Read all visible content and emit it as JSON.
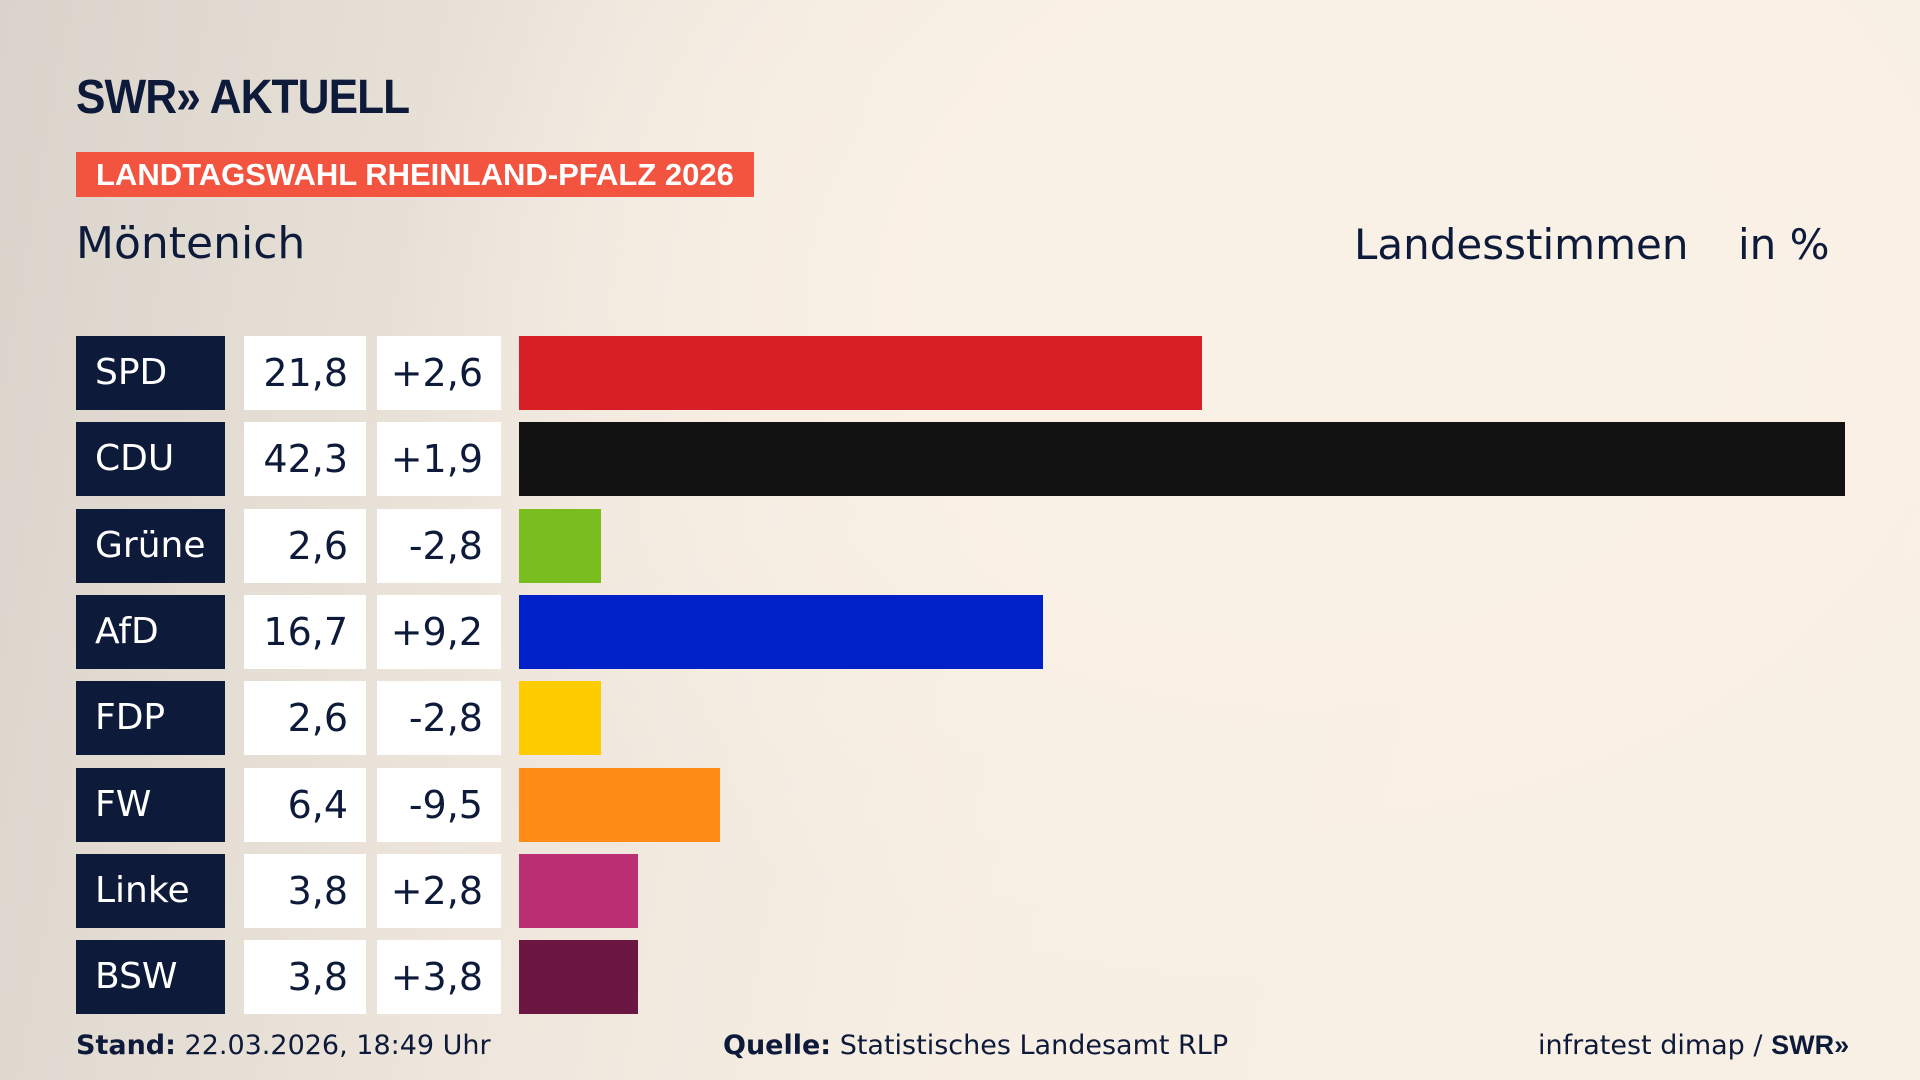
{
  "header": {
    "logo": "SWR» AKTUELL",
    "banner": "LANDTAGSWAHL RHEINLAND-PFALZ 2026",
    "region": "Möntenich",
    "measure": "Landesstimmen",
    "unit": "in %"
  },
  "chart_data": {
    "type": "bar",
    "orientation": "horizontal",
    "categories": [
      "SPD",
      "CDU",
      "Grüne",
      "AfD",
      "FDP",
      "FW",
      "Linke",
      "BSW"
    ],
    "values": [
      21.8,
      42.3,
      2.6,
      16.7,
      2.6,
      6.4,
      3.8,
      3.8
    ],
    "values_label": [
      "21,8",
      "42,3",
      "2,6",
      "16,7",
      "2,6",
      "6,4",
      "3,8",
      "3,8"
    ],
    "changes_label": [
      "+2,6",
      "+1,9",
      "-2,8",
      "+9,2",
      "-2,8",
      "-9,5",
      "+2,8",
      "+3,8"
    ],
    "colors": [
      "#d81f26",
      "#121212",
      "#79bd1e",
      "#0021c8",
      "#ffcc00",
      "#ff8c17",
      "#bb2f74",
      "#6b1741"
    ],
    "xlim": [
      0,
      42.3
    ]
  },
  "footer": {
    "stand_label": "Stand:",
    "stand": "22.03.2026, 18:49 Uhr",
    "source_label": "Quelle:",
    "source": "Statistisches Landesamt RLP",
    "credit": "infratest dimap / ",
    "credit_logo": "SWR»"
  }
}
